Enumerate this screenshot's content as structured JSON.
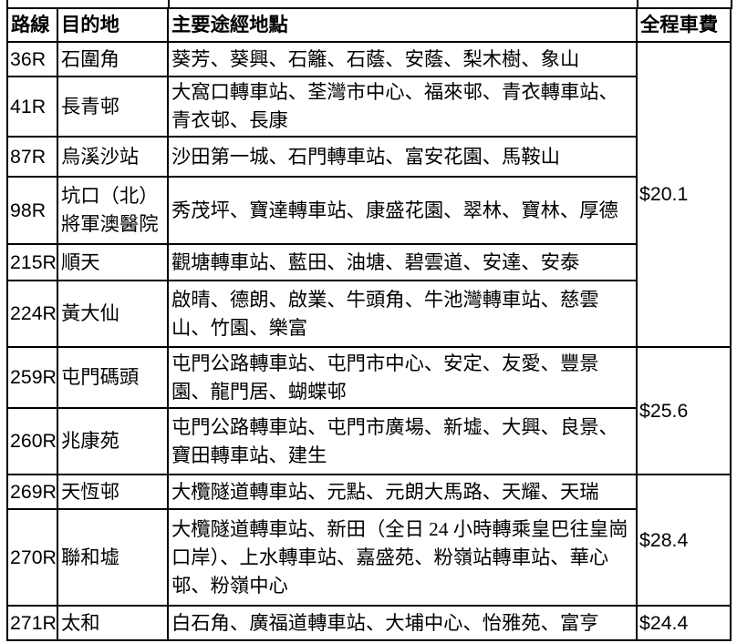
{
  "page": {
    "background_color": "#ffffff",
    "text_color": "#000000",
    "border_color": "#000000"
  },
  "table": {
    "headers": {
      "route": "路線",
      "destination": "目的地",
      "stops": "主要途經地點",
      "fare": "全程車費"
    },
    "rows": [
      {
        "route": "36R",
        "destination": "石圍角",
        "stops": "葵芳、葵興、石籬、石蔭、安蔭、梨木樹、象山",
        "fare": "$20.1",
        "fare_span": 6
      },
      {
        "route": "41R",
        "destination": "長青邨",
        "stops": "大窩口轉車站、荃灣市中心、福來邨、青衣轉車站、青衣邨、長康"
      },
      {
        "route": "87R",
        "destination": "烏溪沙站",
        "stops": "沙田第一城、石門轉車站、富安花園、馬鞍山"
      },
      {
        "route": "98R",
        "destination": "坑口（北）將軍澳醫院",
        "stops": "秀茂坪、寶達轉車站、康盛花園、翠林、寶林、厚德"
      },
      {
        "route": "215R",
        "destination": "順天",
        "stops": "觀塘轉車站、藍田、油塘、碧雲道、安達、安泰"
      },
      {
        "route": "224R",
        "destination": "黃大仙",
        "stops": "啟晴、德朗、啟業、牛頭角、牛池灣轉車站、慈雲山、竹園、樂富"
      },
      {
        "route": "259R",
        "destination": "屯門碼頭",
        "stops": "屯門公路轉車站、屯門市中心、安定、友愛、豐景園、龍門居、蝴蝶邨",
        "fare": "$25.6",
        "fare_span": 2
      },
      {
        "route": "260R",
        "destination": "兆康苑",
        "stops": "屯門公路轉車站、屯門市廣場、新墟、大興、良景、寶田轉車站、建生"
      },
      {
        "route": "269R",
        "destination": "天恆邨",
        "stops": "大欖隧道轉車站、元點、元朗大馬路、天耀、天瑞",
        "fare": "$28.4",
        "fare_span": 2
      },
      {
        "route": "270R",
        "destination": "聯和墟",
        "stops": "大欖隧道轉車站、新田（全日 24 小時轉乘皇巴往皇崗口岸）、上水轉車站、嘉盛苑、粉嶺站轉車站、華心邨、粉嶺中心"
      },
      {
        "route": "271R",
        "destination": "太和",
        "stops": "白石角、廣福道轉車站、大埔中心、怡雅苑、富亨",
        "fare": "$24.4",
        "fare_span": 1
      }
    ]
  }
}
